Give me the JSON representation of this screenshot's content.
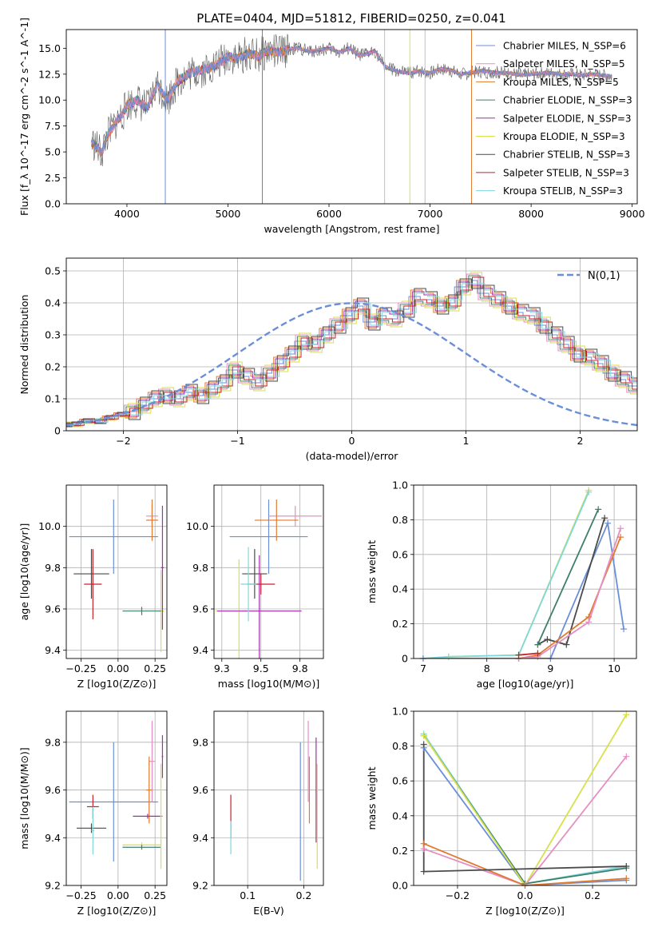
{
  "figure_title": "PLATE=0404, MJD=51812, FIBERID=0250, z=0.041",
  "legend_entries": [
    {
      "label": "Chabrier MILES, N_SSP=6",
      "color": "#6a8fd8"
    },
    {
      "label": "Salpeter MILES, N_SSP=5",
      "color": "#e48fc4"
    },
    {
      "label": "Kroupa MILES, N_SSP=5",
      "color": "#e07a2e"
    },
    {
      "label": "Chabrier ELODIE, N_SSP=3",
      "color": "#3f7f6a"
    },
    {
      "label": "Salpeter ELODIE, N_SSP=3",
      "color": "#a02fa8"
    },
    {
      "label": "Kroupa ELODIE, N_SSP=3",
      "color": "#d8e04a"
    },
    {
      "label": "Chabrier STELIB, N_SSP=3",
      "color": "#4a4a4a"
    },
    {
      "label": "Salpeter STELIB, N_SSP=3",
      "color": "#c8202a"
    },
    {
      "label": "Kroupa STELIB, N_SSP=3",
      "color": "#7fd8de"
    }
  ],
  "chart_data": [
    {
      "id": "spectrum",
      "type": "line",
      "xlabel": "wavelength [Angstrom, rest frame]",
      "ylabel": "Flux [f_λ 10^-17 erg cm^-2 s^-1 A^-1]",
      "xlim": [
        3400,
        9050
      ],
      "ylim": [
        0,
        16.8
      ],
      "xticks": [
        4000,
        5000,
        6000,
        7000,
        8000,
        9000
      ],
      "yticks": [
        0.0,
        2.5,
        5.0,
        7.5,
        10.0,
        12.5,
        15.0
      ],
      "grid": false,
      "legend": "top-right",
      "vlines": [
        {
          "x": 4380,
          "color": "#6a8fd8"
        },
        {
          "x": 5340,
          "color": "#808080"
        },
        {
          "x": 6550,
          "color": "#c0c0c0"
        },
        {
          "x": 6800,
          "color": "#d8e04a"
        },
        {
          "x": 6950,
          "color": "#c0c0c0"
        },
        {
          "x": 7410,
          "color": "#e07a2e"
        }
      ],
      "series": [
        {
          "x": [
            3650,
            3700,
            3750,
            3800,
            3850,
            3900,
            3950,
            4000,
            4100,
            4200,
            4300,
            4400,
            4500,
            4600,
            4700,
            4800,
            4900,
            5000,
            5100,
            5200,
            5300,
            5400,
            5500,
            5600,
            5700,
            5800,
            5900,
            6000,
            6100,
            6200,
            6300,
            6400,
            6450,
            6500,
            6550,
            6600,
            6700,
            6800,
            6900,
            7000,
            7100,
            7200,
            7300,
            7400,
            7500,
            7600,
            7700,
            7800,
            7900,
            8000,
            8100,
            8200,
            8300,
            8400,
            8500,
            8600,
            8700,
            8800
          ],
          "y": [
            6.0,
            5.5,
            4.8,
            6.5,
            7.2,
            8.0,
            8.5,
            9.5,
            10.0,
            9.2,
            11.5,
            10.0,
            11.8,
            12.5,
            12.8,
            13.0,
            13.5,
            14.2,
            14.0,
            14.5,
            14.2,
            14.8,
            14.6,
            14.9,
            15.0,
            14.7,
            14.8,
            15.0,
            14.6,
            15.0,
            14.3,
            14.5,
            14.8,
            14.0,
            13.3,
            13.0,
            12.7,
            12.6,
            12.8,
            12.6,
            13.0,
            12.9,
            12.5,
            12.6,
            12.8,
            12.7,
            12.6,
            12.6,
            12.4,
            12.5,
            12.6,
            12.6,
            12.5,
            12.5,
            12.4,
            12.5,
            12.4,
            12.3
          ]
        }
      ]
    },
    {
      "id": "residual-histogram",
      "type": "bar",
      "xlabel": "(data-model)/error",
      "ylabel": "Normed distribution",
      "xlim": [
        -2.5,
        2.5
      ],
      "ylim": [
        0,
        0.54
      ],
      "xticks": [
        -2,
        -1,
        0,
        1,
        2
      ],
      "yticks": [
        0.0,
        0.1,
        0.2,
        0.3,
        0.4,
        0.5
      ],
      "grid": true,
      "legend": "top-right",
      "normal_curve_label": "N(0,1)",
      "normal_curve_color": "#6a8fd8",
      "bin_width": 0.1,
      "bin_start": -2.6,
      "hist_values": [
        0.02,
        0.02,
        0.03,
        0.03,
        0.04,
        0.05,
        0.06,
        0.08,
        0.1,
        0.11,
        0.1,
        0.12,
        0.11,
        0.13,
        0.15,
        0.19,
        0.17,
        0.15,
        0.18,
        0.21,
        0.24,
        0.28,
        0.27,
        0.3,
        0.33,
        0.36,
        0.39,
        0.34,
        0.36,
        0.35,
        0.38,
        0.42,
        0.41,
        0.39,
        0.4,
        0.45,
        0.47,
        0.43,
        0.41,
        0.39,
        0.37,
        0.36,
        0.33,
        0.3,
        0.27,
        0.24,
        0.23,
        0.21,
        0.18,
        0.16,
        0.14,
        0.12,
        0.09,
        0.07,
        0.06,
        0.05,
        0.04,
        0.04,
        0.03,
        0.03,
        0.03
      ],
      "hist_offsets": [
        0.0,
        0.02,
        -0.02,
        0.015,
        -0.015,
        0.025,
        -0.025,
        0.01,
        -0.01
      ]
    },
    {
      "id": "age-vs-metallicity",
      "type": "scatter",
      "xlabel": "Z [log10(Z/Z⊙)]",
      "ylabel": "age [log10(age/yr)]",
      "xlim": [
        -0.35,
        0.33
      ],
      "ylim": [
        9.36,
        10.2
      ],
      "xticks": [
        -0.25,
        0.0,
        0.25
      ],
      "yticks": [
        9.4,
        9.6,
        9.8,
        10.0
      ],
      "grid": true,
      "errorbars": [
        {
          "x": -0.03,
          "y": 9.95,
          "xerr": 0.3,
          "yerr": 0.18,
          "color": "#6a8fd8"
        },
        {
          "x": 0.23,
          "y": 10.05,
          "xerr": 0.04,
          "yerr": 0.05,
          "color": "#e48fc4"
        },
        {
          "x": 0.23,
          "y": 10.03,
          "xerr": 0.04,
          "yerr": 0.1,
          "color": "#e07a2e"
        },
        {
          "x": -0.18,
          "y": 9.77,
          "xerr": 0.12,
          "yerr": 0.12,
          "color": "#4a4a4a"
        },
        {
          "x": -0.17,
          "y": 9.72,
          "xerr": 0.06,
          "yerr": 0.17,
          "color": "#c8202a"
        },
        {
          "x": 0.29,
          "y": 9.59,
          "xerr": 0.02,
          "yerr": 0.2,
          "color": "#d8e04a"
        },
        {
          "x": 0.16,
          "y": 9.59,
          "xerr": 0.13,
          "yerr": 0.02,
          "color": "#3f7f6a"
        },
        {
          "x": 0.3,
          "y": 9.8,
          "xerr": 0.01,
          "yerr": 0.3,
          "color": "#a02fa8"
        }
      ]
    },
    {
      "id": "age-vs-mass",
      "type": "scatter",
      "xlabel": "mass [log10(M/M⊙)]",
      "ylabel": "",
      "xlim": [
        9.2,
        9.9
      ],
      "ylim": [
        9.36,
        10.2
      ],
      "xticks": [
        9.25,
        9.5,
        9.75
      ],
      "yticks": [
        9.4,
        9.6,
        9.8,
        10.0
      ],
      "grid": true,
      "errorbars": [
        {
          "x": 9.55,
          "y": 9.95,
          "xerr": 0.25,
          "yerr": 0.18,
          "color": "#6a8fd8"
        },
        {
          "x": 9.72,
          "y": 10.05,
          "xerr": 0.17,
          "yerr": 0.05,
          "color": "#e48fc4"
        },
        {
          "x": 9.6,
          "y": 10.03,
          "xerr": 0.14,
          "yerr": 0.1,
          "color": "#e07a2e"
        },
        {
          "x": 9.46,
          "y": 9.77,
          "xerr": 0.08,
          "yerr": 0.12,
          "color": "#4a4a4a"
        },
        {
          "x": 9.5,
          "y": 9.72,
          "xerr": 0.09,
          "yerr": 0.05,
          "color": "#c8202a"
        },
        {
          "x": 9.36,
          "y": 9.59,
          "xerr": 0.15,
          "yerr": 0.25,
          "color": "#d8e04a"
        },
        {
          "x": 9.49,
          "y": 9.59,
          "xerr": 0.27,
          "yerr": 0.27,
          "color": "#a02fa8"
        },
        {
          "x": 9.42,
          "y": 9.72,
          "xerr": 0.05,
          "yerr": 0.18,
          "color": "#7fd8de"
        }
      ]
    },
    {
      "id": "mass-weight-vs-age",
      "type": "line",
      "xlabel": "age [log10(age/yr)]",
      "ylabel": "mass weight",
      "xlim": [
        6.85,
        10.35
      ],
      "ylim": [
        0,
        1.0
      ],
      "xticks": [
        7,
        8,
        9,
        10
      ],
      "yticks": [
        0.0,
        0.2,
        0.4,
        0.6,
        0.8,
        1.0
      ],
      "grid": true,
      "series": [
        {
          "color": "#d8e04a",
          "x": [
            7.0,
            7.4,
            8.5,
            9.6
          ],
          "y": [
            0.0,
            0.01,
            0.02,
            0.97
          ]
        },
        {
          "color": "#7fd8de",
          "x": [
            7.0,
            7.4,
            8.5,
            9.6
          ],
          "y": [
            0.0,
            0.01,
            0.02,
            0.96
          ]
        },
        {
          "color": "#6a8fd8",
          "x": [
            7.0,
            8.5,
            9.0,
            9.9,
            10.15
          ],
          "y": [
            0.0,
            0.0,
            0.0,
            0.78,
            0.17
          ]
        },
        {
          "color": "#4a4a4a",
          "x": [
            8.8,
            8.95,
            9.25,
            9.85
          ],
          "y": [
            0.08,
            0.11,
            0.08,
            0.81
          ]
        },
        {
          "color": "#3f7f6a",
          "x": [
            8.8,
            9.75
          ],
          "y": [
            0.08,
            0.86
          ]
        },
        {
          "color": "#e07a2e",
          "x": [
            8.5,
            8.8,
            9.6,
            10.1
          ],
          "y": [
            0.0,
            0.02,
            0.24,
            0.7
          ]
        },
        {
          "color": "#e48fc4",
          "x": [
            8.5,
            8.8,
            9.6,
            10.1
          ],
          "y": [
            0.0,
            0.01,
            0.21,
            0.75
          ]
        },
        {
          "color": "#c8202a",
          "x": [
            8.5,
            8.8
          ],
          "y": [
            0.02,
            0.03
          ]
        }
      ]
    },
    {
      "id": "mass-vs-metallicity",
      "type": "scatter",
      "xlabel": "Z [log10(Z/Z⊙)]",
      "ylabel": "mass [log10(M/M⊙)]",
      "xlim": [
        -0.35,
        0.33
      ],
      "ylim": [
        9.2,
        9.93
      ],
      "xticks": [
        -0.25,
        0.0,
        0.25
      ],
      "yticks": [
        9.2,
        9.4,
        9.6,
        9.8
      ],
      "grid": true,
      "errorbars": [
        {
          "x": -0.03,
          "y": 9.55,
          "xerr": 0.3,
          "yerr": 0.25,
          "color": "#6a8fd8"
        },
        {
          "x": 0.23,
          "y": 9.72,
          "xerr": 0.02,
          "yerr": 0.17,
          "color": "#e48fc4"
        },
        {
          "x": 0.21,
          "y": 9.6,
          "xerr": 0.02,
          "yerr": 0.14,
          "color": "#e07a2e"
        },
        {
          "x": -0.18,
          "y": 9.44,
          "xerr": 0.1,
          "yerr": 0.02,
          "color": "#4a4a4a"
        },
        {
          "x": -0.17,
          "y": 9.53,
          "xerr": 0.04,
          "yerr": 0.05,
          "color": "#c8202a"
        },
        {
          "x": 0.16,
          "y": 9.37,
          "xerr": 0.13,
          "yerr": 0.01,
          "color": "#d8e04a"
        },
        {
          "x": 0.16,
          "y": 9.36,
          "xerr": 0.13,
          "yerr": 0.01,
          "color": "#3f7f6a"
        },
        {
          "x": 0.2,
          "y": 9.49,
          "xerr": 0.1,
          "yerr": 0.01,
          "color": "#a02fa8"
        },
        {
          "x": 0.3,
          "y": 9.74,
          "xerr": 0.005,
          "yerr": 0.09,
          "color": "#a02fa8"
        },
        {
          "x": 0.29,
          "y": 9.49,
          "xerr": 0.005,
          "yerr": 0.22,
          "color": "#d8e04a"
        },
        {
          "x": -0.17,
          "y": 9.43,
          "xerr": 0.01,
          "yerr": 0.1,
          "color": "#7fd8de"
        }
      ]
    },
    {
      "id": "mass-vs-ebv",
      "type": "scatter",
      "xlabel": "E(B-V)",
      "ylabel": "",
      "xlim": [
        0.04,
        0.235
      ],
      "ylim": [
        9.2,
        9.93
      ],
      "xticks": [
        0.1,
        0.2
      ],
      "yticks": [
        9.2,
        9.4,
        9.6,
        9.8
      ],
      "grid": true,
      "errorbars": [
        {
          "x": 0.07,
          "y": 9.49,
          "xerr": 0.0,
          "yerr": 0.09,
          "color": "#c8202a"
        },
        {
          "x": 0.07,
          "y": 9.4,
          "xerr": 0.0,
          "yerr": 0.07,
          "color": "#7fd8de"
        },
        {
          "x": 0.194,
          "y": 9.51,
          "xerr": 0.0,
          "yerr": 0.29,
          "color": "#6a8fd8"
        },
        {
          "x": 0.21,
          "y": 9.6,
          "xerr": 0.0,
          "yerr": 0.14,
          "color": "#e07a2e"
        },
        {
          "x": 0.208,
          "y": 9.72,
          "xerr": 0.0,
          "yerr": 0.17,
          "color": "#e48fc4"
        },
        {
          "x": 0.222,
          "y": 9.6,
          "xerr": 0.0,
          "yerr": 0.22,
          "color": "#a02fa8"
        },
        {
          "x": 0.224,
          "y": 9.49,
          "xerr": 0.0,
          "yerr": 0.22,
          "color": "#d8e04a"
        }
      ]
    },
    {
      "id": "mass-weight-vs-metallicity",
      "type": "line",
      "xlabel": "Z [log10(Z/Z⊙)]",
      "ylabel": "mass weight",
      "xlim": [
        -0.33,
        0.33
      ],
      "ylim": [
        0,
        1.0
      ],
      "xticks": [
        -0.2,
        0.0,
        0.2
      ],
      "yticks": [
        0.0,
        0.2,
        0.4,
        0.6,
        0.8,
        1.0
      ],
      "grid": true,
      "series": [
        {
          "color": "#6a8fd8",
          "x": [
            -0.3,
            0.0,
            0.3
          ],
          "y": [
            0.79,
            0.0,
            0.03
          ]
        },
        {
          "color": "#7fd8de",
          "x": [
            -0.3,
            0.0,
            0.3
          ],
          "y": [
            0.87,
            0.01,
            0.11
          ]
        },
        {
          "color": "#3f7f6a",
          "x": [
            -0.3,
            0.0,
            0.3
          ],
          "y": [
            0.86,
            0.01,
            0.1
          ]
        },
        {
          "color": "#d8e04a",
          "x": [
            -0.3,
            0.0,
            0.3
          ],
          "y": [
            0.86,
            0.0,
            0.98
          ]
        },
        {
          "color": "#e48fc4",
          "x": [
            -0.3,
            0.0,
            0.3
          ],
          "y": [
            0.21,
            0.0,
            0.74
          ]
        },
        {
          "color": "#e07a2e",
          "x": [
            -0.3,
            0.0,
            0.3
          ],
          "y": [
            0.24,
            0.0,
            0.04
          ]
        },
        {
          "color": "#4a4a4a",
          "x": [
            -0.3,
            -0.3,
            0.3
          ],
          "y": [
            0.81,
            0.08,
            0.11
          ]
        }
      ]
    }
  ]
}
